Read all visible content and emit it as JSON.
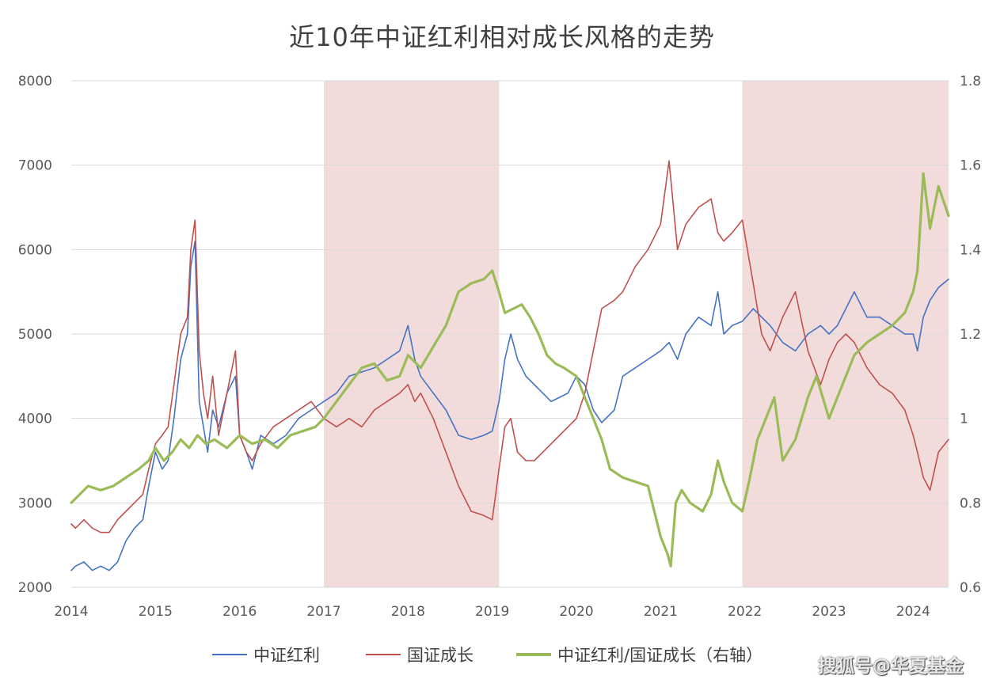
{
  "chart_data": {
    "type": "line",
    "title": "近10年中证红利相对成长风格的走势",
    "x_ticks": [
      "2014",
      "2015",
      "2016",
      "2017",
      "2018",
      "2019",
      "2020",
      "2021",
      "2022",
      "2023",
      "2024"
    ],
    "y_left_ticks": [
      "2000",
      "3000",
      "4000",
      "5000",
      "6000",
      "7000",
      "8000"
    ],
    "y_right_ticks": [
      "0.6",
      "0.8",
      "1",
      "1.2",
      "1.4",
      "1.6",
      "1.8"
    ],
    "ylim_left": [
      2000,
      8000
    ],
    "ylim_right": [
      0.6,
      1.8
    ],
    "xlim": [
      2014.0,
      2024.42
    ],
    "grid": true,
    "legend_position": "bottom",
    "shaded_periods": [
      [
        2017.0,
        2019.08
      ],
      [
        2021.97,
        2024.42
      ]
    ],
    "shade_color": "#f2dcdb",
    "series": [
      {
        "name": "中证红利",
        "axis": "left",
        "color": "#4472c4",
        "x": [
          2014.0,
          2014.05,
          2014.15,
          2014.25,
          2014.35,
          2014.45,
          2014.55,
          2014.65,
          2014.75,
          2014.85,
          2014.92,
          2015.0,
          2015.08,
          2015.15,
          2015.22,
          2015.3,
          2015.38,
          2015.42,
          2015.47,
          2015.52,
          2015.57,
          2015.62,
          2015.68,
          2015.75,
          2015.85,
          2015.95,
          2016.0,
          2016.08,
          2016.15,
          2016.25,
          2016.4,
          2016.55,
          2016.7,
          2016.85,
          2017.0,
          2017.15,
          2017.3,
          2017.45,
          2017.6,
          2017.75,
          2017.9,
          2018.0,
          2018.08,
          2018.15,
          2018.3,
          2018.45,
          2018.6,
          2018.75,
          2018.9,
          2019.0,
          2019.08,
          2019.15,
          2019.22,
          2019.3,
          2019.4,
          2019.5,
          2019.6,
          2019.7,
          2019.8,
          2019.9,
          2020.0,
          2020.1,
          2020.2,
          2020.3,
          2020.45,
          2020.55,
          2020.7,
          2020.85,
          2021.0,
          2021.1,
          2021.2,
          2021.3,
          2021.45,
          2021.6,
          2021.68,
          2021.75,
          2021.85,
          2021.97,
          2022.1,
          2022.2,
          2022.3,
          2022.45,
          2022.6,
          2022.75,
          2022.9,
          2023.0,
          2023.1,
          2023.2,
          2023.3,
          2023.45,
          2023.6,
          2023.75,
          2023.9,
          2024.0,
          2024.05,
          2024.12,
          2024.2,
          2024.3,
          2024.42
        ],
        "y": [
          2200,
          2250,
          2300,
          2200,
          2250,
          2200,
          2300,
          2550,
          2700,
          2800,
          3200,
          3600,
          3400,
          3500,
          4000,
          4700,
          5000,
          5800,
          6100,
          4200,
          3900,
          3600,
          4100,
          3900,
          4300,
          4500,
          3800,
          3600,
          3400,
          3800,
          3700,
          3800,
          4000,
          4100,
          4200,
          4300,
          4500,
          4550,
          4600,
          4700,
          4800,
          5100,
          4700,
          4500,
          4300,
          4100,
          3800,
          3750,
          3800,
          3850,
          4200,
          4700,
          5000,
          4700,
          4500,
          4400,
          4300,
          4200,
          4250,
          4300,
          4500,
          4400,
          4100,
          3950,
          4100,
          4500,
          4600,
          4700,
          4800,
          4900,
          4700,
          5000,
          5200,
          5100,
          5500,
          5000,
          5100,
          5150,
          5300,
          5200,
          5100,
          4900,
          4800,
          5000,
          5100,
          5000,
          5100,
          5300,
          5500,
          5200,
          5200,
          5100,
          5000,
          5000,
          4800,
          5200,
          5400,
          5550,
          5650
        ]
      },
      {
        "name": "国证成长",
        "axis": "left",
        "color": "#c0504d",
        "x": [
          2014.0,
          2014.05,
          2014.15,
          2014.25,
          2014.35,
          2014.45,
          2014.55,
          2014.65,
          2014.75,
          2014.85,
          2014.92,
          2015.0,
          2015.08,
          2015.15,
          2015.22,
          2015.3,
          2015.38,
          2015.42,
          2015.47,
          2015.52,
          2015.57,
          2015.62,
          2015.68,
          2015.75,
          2015.85,
          2015.95,
          2016.0,
          2016.08,
          2016.15,
          2016.25,
          2016.4,
          2016.55,
          2016.7,
          2016.85,
          2017.0,
          2017.15,
          2017.3,
          2017.45,
          2017.6,
          2017.75,
          2017.9,
          2018.0,
          2018.08,
          2018.15,
          2018.3,
          2018.45,
          2018.6,
          2018.75,
          2018.9,
          2019.0,
          2019.08,
          2019.15,
          2019.22,
          2019.3,
          2019.4,
          2019.5,
          2019.6,
          2019.7,
          2019.8,
          2019.9,
          2020.0,
          2020.1,
          2020.2,
          2020.3,
          2020.45,
          2020.55,
          2020.7,
          2020.85,
          2021.0,
          2021.1,
          2021.2,
          2021.3,
          2021.45,
          2021.6,
          2021.68,
          2021.75,
          2021.85,
          2021.97,
          2022.1,
          2022.2,
          2022.3,
          2022.45,
          2022.6,
          2022.75,
          2022.9,
          2023.0,
          2023.1,
          2023.2,
          2023.3,
          2023.45,
          2023.6,
          2023.75,
          2023.9,
          2024.0,
          2024.05,
          2024.12,
          2024.2,
          2024.3,
          2024.42
        ],
        "y": [
          2750,
          2700,
          2800,
          2700,
          2650,
          2650,
          2800,
          2900,
          3000,
          3100,
          3400,
          3700,
          3800,
          3900,
          4400,
          5000,
          5200,
          6000,
          6350,
          4800,
          4300,
          4000,
          4500,
          3800,
          4300,
          4800,
          3800,
          3600,
          3500,
          3700,
          3900,
          4000,
          4100,
          4200,
          4000,
          3900,
          4000,
          3900,
          4100,
          4200,
          4300,
          4400,
          4200,
          4300,
          4000,
          3600,
          3200,
          2900,
          2850,
          2800,
          3400,
          3900,
          4000,
          3600,
          3500,
          3500,
          3600,
          3700,
          3800,
          3900,
          4000,
          4300,
          4800,
          5300,
          5400,
          5500,
          5800,
          6000,
          6300,
          7050,
          6000,
          6300,
          6500,
          6600,
          6200,
          6100,
          6200,
          6350,
          5600,
          5000,
          4800,
          5200,
          5500,
          4800,
          4400,
          4700,
          4900,
          5000,
          4900,
          4600,
          4400,
          4300,
          4100,
          3800,
          3600,
          3300,
          3150,
          3600,
          3750
        ]
      },
      {
        "name": "中证红利/国证成长（右轴）",
        "axis": "right",
        "color": "#9bbb59",
        "x": [
          2014.0,
          2014.1,
          2014.2,
          2014.35,
          2014.5,
          2014.65,
          2014.8,
          2014.92,
          2015.0,
          2015.1,
          2015.2,
          2015.3,
          2015.4,
          2015.5,
          2015.6,
          2015.7,
          2015.85,
          2016.0,
          2016.15,
          2016.3,
          2016.45,
          2016.6,
          2016.75,
          2016.9,
          2017.0,
          2017.15,
          2017.3,
          2017.45,
          2017.6,
          2017.75,
          2017.9,
          2018.0,
          2018.15,
          2018.3,
          2018.45,
          2018.6,
          2018.75,
          2018.9,
          2019.0,
          2019.08,
          2019.15,
          2019.25,
          2019.35,
          2019.45,
          2019.55,
          2019.65,
          2019.75,
          2019.85,
          2020.0,
          2020.1,
          2020.2,
          2020.3,
          2020.4,
          2020.55,
          2020.7,
          2020.85,
          2021.0,
          2021.08,
          2021.12,
          2021.18,
          2021.25,
          2021.35,
          2021.5,
          2021.6,
          2021.68,
          2021.75,
          2021.85,
          2021.97,
          2022.05,
          2022.15,
          2022.25,
          2022.35,
          2022.45,
          2022.6,
          2022.75,
          2022.85,
          2023.0,
          2023.1,
          2023.2,
          2023.3,
          2023.45,
          2023.6,
          2023.75,
          2023.9,
          2024.0,
          2024.05,
          2024.12,
          2024.2,
          2024.3,
          2024.42
        ],
        "y": [
          0.8,
          0.82,
          0.84,
          0.83,
          0.84,
          0.86,
          0.88,
          0.9,
          0.93,
          0.9,
          0.92,
          0.95,
          0.93,
          0.96,
          0.94,
          0.95,
          0.93,
          0.96,
          0.94,
          0.95,
          0.93,
          0.96,
          0.97,
          0.98,
          1.0,
          1.04,
          1.08,
          1.12,
          1.13,
          1.09,
          1.1,
          1.15,
          1.12,
          1.17,
          1.22,
          1.3,
          1.32,
          1.33,
          1.35,
          1.3,
          1.25,
          1.26,
          1.27,
          1.24,
          1.2,
          1.15,
          1.13,
          1.12,
          1.1,
          1.05,
          1.0,
          0.95,
          0.88,
          0.86,
          0.85,
          0.84,
          0.72,
          0.68,
          0.65,
          0.8,
          0.83,
          0.8,
          0.78,
          0.82,
          0.9,
          0.85,
          0.8,
          0.78,
          0.85,
          0.95,
          1.0,
          1.05,
          0.9,
          0.95,
          1.05,
          1.1,
          1.0,
          1.05,
          1.1,
          1.15,
          1.18,
          1.2,
          1.22,
          1.25,
          1.3,
          1.35,
          1.58,
          1.45,
          1.55,
          1.48
        ]
      }
    ]
  },
  "watermark": "搜狐号@华夏基金"
}
